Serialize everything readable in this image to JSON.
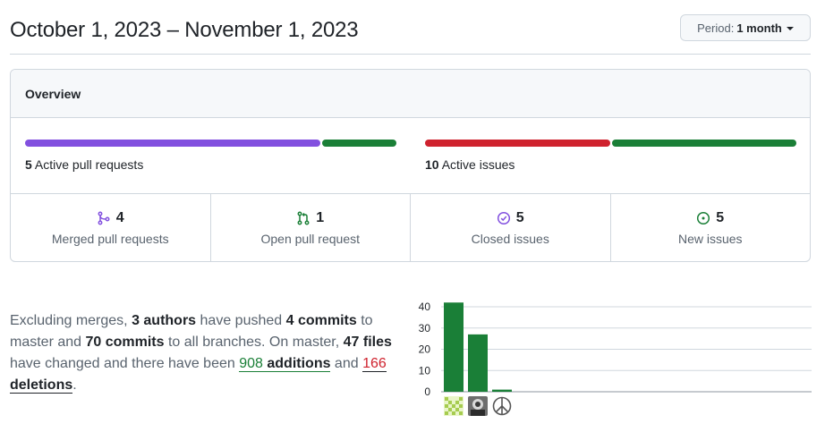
{
  "header": {
    "title": "October 1, 2023 – November 1, 2023",
    "period_label": "Period:",
    "period_value": "1 month"
  },
  "overview": {
    "heading": "Overview",
    "pull_requests": {
      "count": "5",
      "label": "Active pull requests",
      "segments": [
        {
          "fraction": 0.8,
          "color": "#8250df"
        },
        {
          "fraction": 0.2,
          "color": "#1a7f37"
        }
      ]
    },
    "issues": {
      "count": "10",
      "label": "Active issues",
      "segments": [
        {
          "fraction": 0.5,
          "color": "#cf222e"
        },
        {
          "fraction": 0.5,
          "color": "#1a7f37"
        }
      ]
    },
    "stats": [
      {
        "icon": "git-merge-icon",
        "color": "#8250df",
        "count": "4",
        "label": "Merged pull requests"
      },
      {
        "icon": "git-pull-request-icon",
        "color": "#1a7f37",
        "count": "1",
        "label": "Open pull request"
      },
      {
        "icon": "issue-closed-icon",
        "color": "#8250df",
        "count": "5",
        "label": "Closed issues"
      },
      {
        "icon": "issue-opened-icon",
        "color": "#1a7f37",
        "count": "5",
        "label": "New issues"
      }
    ]
  },
  "summary": {
    "t1": "Excluding merges, ",
    "authors": "3 authors",
    "t2": " have pushed ",
    "commits_master": "4 commits",
    "t3": " to master and ",
    "commits_all": "70 commits",
    "t4": " to all branches. On master, ",
    "files": "47 files",
    "t5": " have changed and there have been ",
    "additions_num": "908",
    "additions_word": "additions",
    "t6": " and ",
    "deletions_num": "166",
    "deletions_word": "deletions",
    "t7": "."
  },
  "chart_data": {
    "type": "bar",
    "categories": [
      "author-1",
      "author-2",
      "author-3"
    ],
    "values": [
      42,
      27,
      1
    ],
    "ylim": [
      0,
      40
    ],
    "yticks": [
      0,
      10,
      20,
      30,
      40
    ],
    "bar_color": "#1a7f37",
    "grid": true,
    "avatar_icons": [
      "identicon-avatar-icon",
      "photo-avatar-icon",
      "peace-symbol-avatar-icon"
    ]
  }
}
